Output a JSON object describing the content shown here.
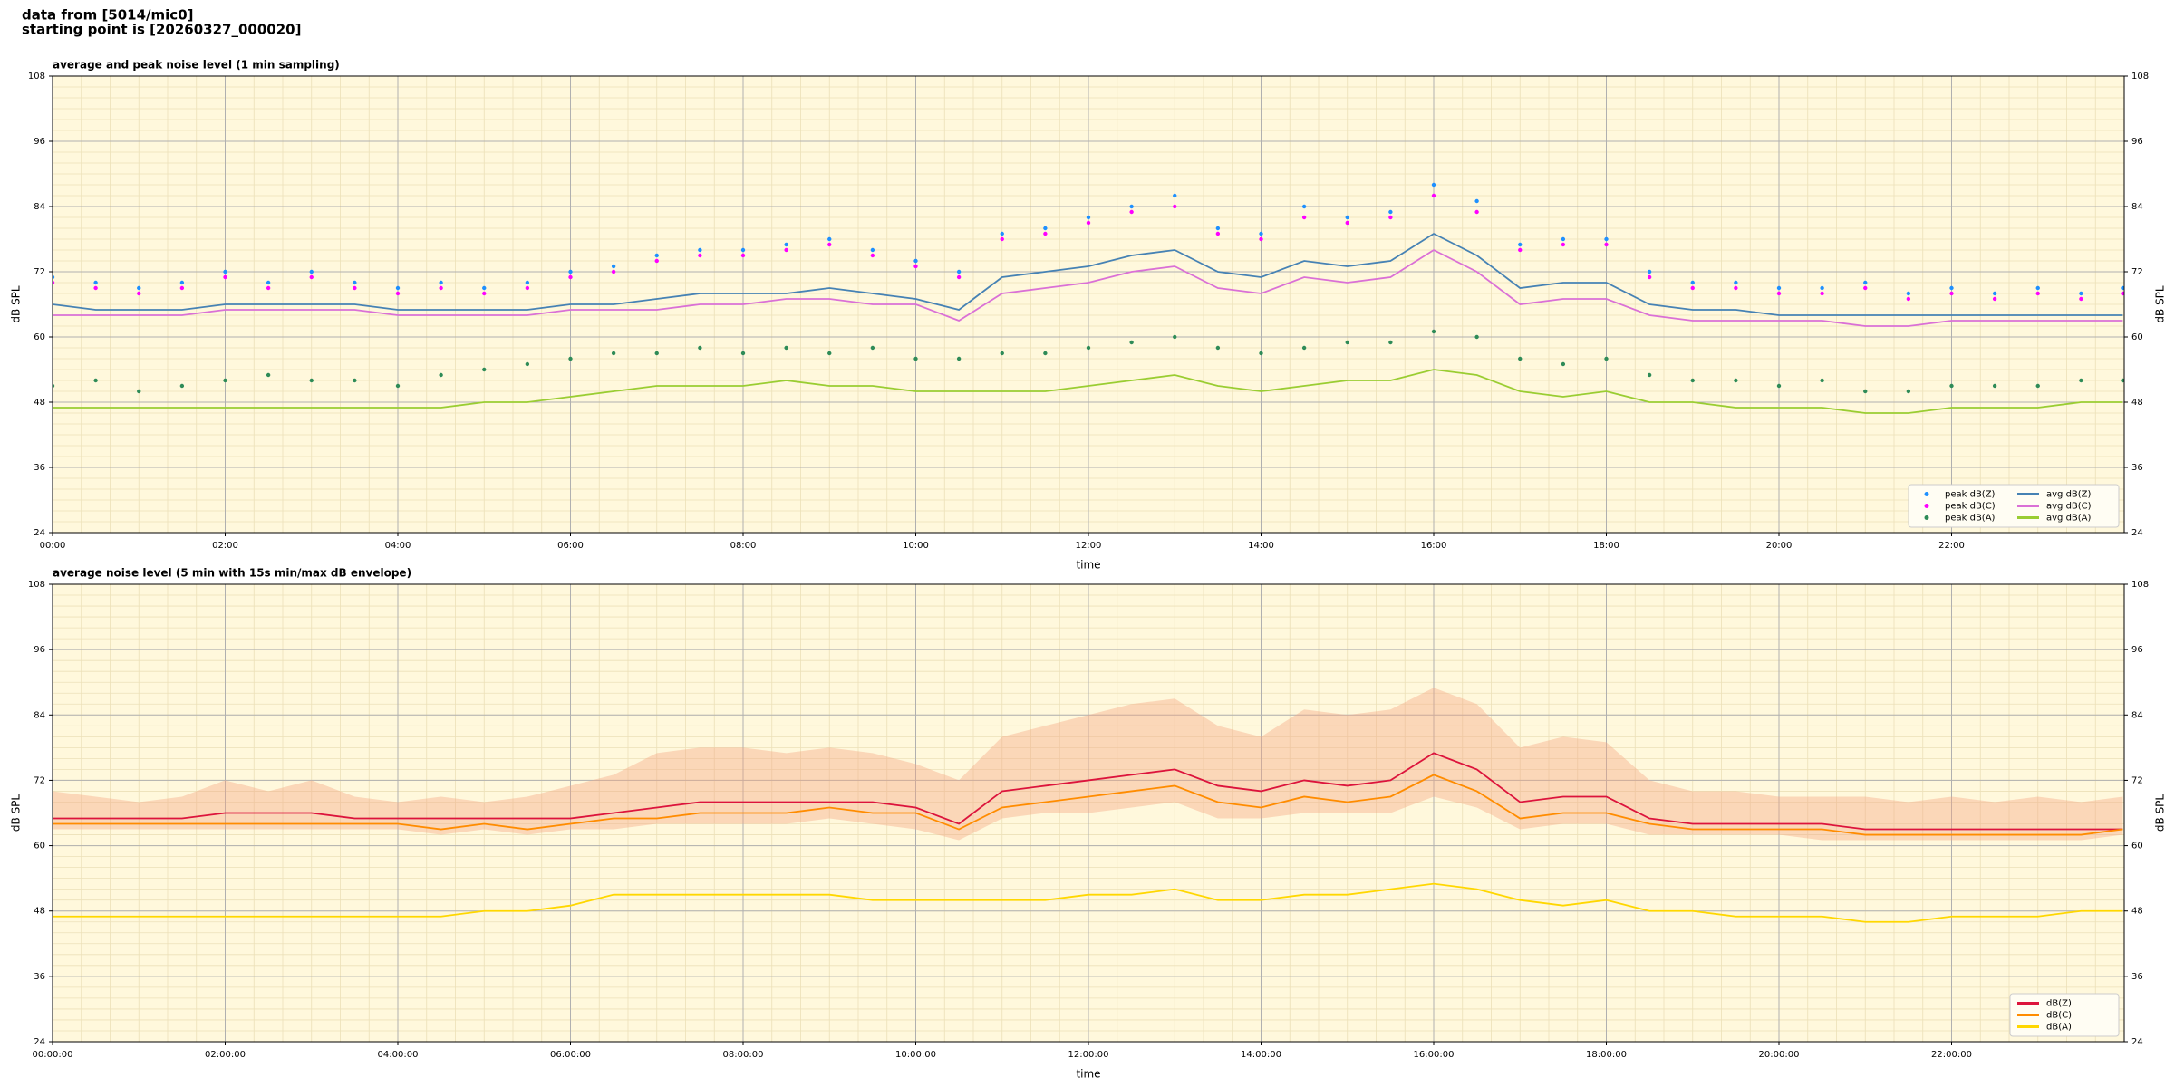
{
  "header": {
    "line1": "data from [5014/mic0]",
    "line2": "starting point is [20260327_000020]"
  },
  "chart_data": [
    {
      "type": "line",
      "title": "average and peak noise level (1 min sampling)",
      "xlabel": "time",
      "ylabel": "dB SPL",
      "background": "#fff8dc",
      "grid": true,
      "minor_grid": true,
      "legend_loc": "lower right",
      "legend_ncol": 2,
      "xlim": [
        0,
        1440
      ],
      "ylim": [
        24,
        108
      ],
      "yticks": [
        24,
        36,
        48,
        60,
        72,
        84,
        96,
        108
      ],
      "xticks": [
        {
          "value": 0,
          "label": "00:00"
        },
        {
          "value": 120,
          "label": "02:00"
        },
        {
          "value": 240,
          "label": "04:00"
        },
        {
          "value": 360,
          "label": "06:00"
        },
        {
          "value": 480,
          "label": "08:00"
        },
        {
          "value": 600,
          "label": "10:00"
        },
        {
          "value": 720,
          "label": "12:00"
        },
        {
          "value": 840,
          "label": "14:00"
        },
        {
          "value": 960,
          "label": "16:00"
        },
        {
          "value": 1080,
          "label": "18:00"
        },
        {
          "value": 1200,
          "label": "20:00"
        },
        {
          "value": 1320,
          "label": "22:00"
        }
      ],
      "x": [
        0,
        30,
        60,
        90,
        120,
        150,
        180,
        210,
        240,
        270,
        300,
        330,
        360,
        390,
        420,
        450,
        480,
        510,
        540,
        570,
        600,
        630,
        660,
        690,
        720,
        750,
        780,
        810,
        840,
        870,
        900,
        930,
        960,
        990,
        1020,
        1050,
        1080,
        1110,
        1140,
        1170,
        1200,
        1230,
        1260,
        1290,
        1320,
        1350,
        1380,
        1410,
        1439
      ],
      "series": [
        {
          "name": "peak dB(Z)",
          "kind": "scatter",
          "color": "#1e90ff",
          "values": [
            71,
            70,
            69,
            70,
            72,
            70,
            72,
            70,
            69,
            70,
            69,
            70,
            72,
            73,
            75,
            76,
            76,
            77,
            78,
            76,
            74,
            72,
            79,
            80,
            82,
            84,
            86,
            80,
            79,
            84,
            82,
            83,
            88,
            85,
            77,
            78,
            78,
            72,
            70,
            70,
            69,
            69,
            70,
            68,
            69,
            68,
            69,
            68,
            69
          ]
        },
        {
          "name": "peak dB(C)",
          "kind": "scatter",
          "color": "#ff00ff",
          "values": [
            70,
            69,
            68,
            69,
            71,
            69,
            71,
            69,
            68,
            69,
            68,
            69,
            71,
            72,
            74,
            75,
            75,
            76,
            77,
            75,
            73,
            71,
            78,
            79,
            81,
            83,
            84,
            79,
            78,
            82,
            81,
            82,
            86,
            83,
            76,
            77,
            77,
            71,
            69,
            69,
            68,
            68,
            69,
            67,
            68,
            67,
            68,
            67,
            68
          ]
        },
        {
          "name": "peak dB(A)",
          "kind": "scatter",
          "color": "#2e8b57",
          "values": [
            51,
            52,
            50,
            51,
            52,
            53,
            52,
            52,
            51,
            53,
            54,
            55,
            56,
            57,
            57,
            58,
            57,
            58,
            57,
            58,
            56,
            56,
            57,
            57,
            58,
            59,
            60,
            58,
            57,
            58,
            59,
            59,
            61,
            60,
            56,
            55,
            56,
            53,
            52,
            52,
            51,
            52,
            50,
            50,
            51,
            51,
            51,
            52,
            52
          ]
        },
        {
          "name": "avg dB(Z)",
          "kind": "line",
          "color": "#4682b4",
          "values": [
            66,
            65,
            65,
            65,
            66,
            66,
            66,
            66,
            65,
            65,
            65,
            65,
            66,
            66,
            67,
            68,
            68,
            68,
            69,
            68,
            67,
            65,
            71,
            72,
            73,
            75,
            76,
            72,
            71,
            74,
            73,
            74,
            79,
            75,
            69,
            70,
            70,
            66,
            65,
            65,
            64,
            64,
            64,
            64,
            64,
            64,
            64,
            64,
            64
          ]
        },
        {
          "name": "avg dB(C)",
          "kind": "line",
          "color": "#da70d6",
          "values": [
            64,
            64,
            64,
            64,
            65,
            65,
            65,
            65,
            64,
            64,
            64,
            64,
            65,
            65,
            65,
            66,
            66,
            67,
            67,
            66,
            66,
            63,
            68,
            69,
            70,
            72,
            73,
            69,
            68,
            71,
            70,
            71,
            76,
            72,
            66,
            67,
            67,
            64,
            63,
            63,
            63,
            63,
            62,
            62,
            63,
            63,
            63,
            63,
            63
          ]
        },
        {
          "name": "avg dB(A)",
          "kind": "line",
          "color": "#9acd32",
          "values": [
            47,
            47,
            47,
            47,
            47,
            47,
            47,
            47,
            47,
            47,
            48,
            48,
            49,
            50,
            51,
            51,
            51,
            52,
            51,
            51,
            50,
            50,
            50,
            50,
            51,
            52,
            53,
            51,
            50,
            51,
            52,
            52,
            54,
            53,
            50,
            49,
            50,
            48,
            48,
            47,
            47,
            47,
            46,
            46,
            47,
            47,
            47,
            48,
            48
          ]
        }
      ]
    },
    {
      "type": "line",
      "title": "average noise level (5 min with 15s min/max dB envelope)",
      "xlabel": "time",
      "ylabel": "dB SPL",
      "background": "#fff8dc",
      "grid": true,
      "minor_grid": true,
      "legend_loc": "lower right",
      "legend_ncol": 1,
      "xlim": [
        0,
        1440
      ],
      "ylim": [
        24,
        108
      ],
      "yticks": [
        24,
        36,
        48,
        60,
        72,
        84,
        96,
        108
      ],
      "xticks": [
        {
          "value": 0,
          "label": "00:00:00"
        },
        {
          "value": 120,
          "label": "02:00:00"
        },
        {
          "value": 240,
          "label": "04:00:00"
        },
        {
          "value": 360,
          "label": "06:00:00"
        },
        {
          "value": 480,
          "label": "08:00:00"
        },
        {
          "value": 600,
          "label": "10:00:00"
        },
        {
          "value": 720,
          "label": "12:00:00"
        },
        {
          "value": 840,
          "label": "14:00:00"
        },
        {
          "value": 960,
          "label": "16:00:00"
        },
        {
          "value": 1080,
          "label": "18:00:00"
        },
        {
          "value": 1200,
          "label": "20:00:00"
        },
        {
          "value": 1320,
          "label": "22:00:00"
        }
      ],
      "x": [
        0,
        30,
        60,
        90,
        120,
        150,
        180,
        210,
        240,
        270,
        300,
        330,
        360,
        390,
        420,
        450,
        480,
        510,
        540,
        570,
        600,
        630,
        660,
        690,
        720,
        750,
        780,
        810,
        840,
        870,
        900,
        930,
        960,
        990,
        1020,
        1050,
        1080,
        1110,
        1140,
        1170,
        1200,
        1230,
        1260,
        1290,
        1320,
        1350,
        1380,
        1410,
        1439
      ],
      "band": {
        "color": "#f4a582",
        "lower": [
          63,
          63,
          63,
          63,
          63,
          63,
          63,
          63,
          63,
          62,
          63,
          62,
          63,
          63,
          64,
          64,
          64,
          64,
          65,
          64,
          63,
          61,
          65,
          66,
          66,
          67,
          68,
          65,
          65,
          66,
          66,
          66,
          69,
          67,
          63,
          64,
          64,
          62,
          62,
          62,
          62,
          61,
          61,
          61,
          61,
          61,
          61,
          61,
          62
        ],
        "upper": [
          70,
          69,
          68,
          69,
          72,
          70,
          72,
          69,
          68,
          69,
          68,
          69,
          71,
          73,
          77,
          78,
          78,
          77,
          78,
          77,
          75,
          72,
          80,
          82,
          84,
          86,
          87,
          82,
          80,
          85,
          84,
          85,
          89,
          86,
          78,
          80,
          79,
          72,
          70,
          70,
          69,
          69,
          69,
          68,
          69,
          68,
          69,
          68,
          69
        ]
      },
      "series": [
        {
          "name": "dB(Z)",
          "kind": "line",
          "color": "#dc143c",
          "values": [
            65,
            65,
            65,
            65,
            66,
            66,
            66,
            65,
            65,
            65,
            65,
            65,
            65,
            66,
            67,
            68,
            68,
            68,
            68,
            68,
            67,
            64,
            70,
            71,
            72,
            73,
            74,
            71,
            70,
            72,
            71,
            72,
            77,
            74,
            68,
            69,
            69,
            65,
            64,
            64,
            64,
            64,
            63,
            63,
            63,
            63,
            63,
            63,
            63
          ]
        },
        {
          "name": "dB(C)",
          "kind": "line",
          "color": "#ff8c00",
          "values": [
            64,
            64,
            64,
            64,
            64,
            64,
            64,
            64,
            64,
            63,
            64,
            63,
            64,
            65,
            65,
            66,
            66,
            66,
            67,
            66,
            66,
            63,
            67,
            68,
            69,
            70,
            71,
            68,
            67,
            69,
            68,
            69,
            73,
            70,
            65,
            66,
            66,
            64,
            63,
            63,
            63,
            63,
            62,
            62,
            62,
            62,
            62,
            62,
            63
          ]
        },
        {
          "name": "dB(A)",
          "kind": "line",
          "color": "#ffd700",
          "values": [
            47,
            47,
            47,
            47,
            47,
            47,
            47,
            47,
            47,
            47,
            48,
            48,
            49,
            51,
            51,
            51,
            51,
            51,
            51,
            50,
            50,
            50,
            50,
            50,
            51,
            51,
            52,
            50,
            50,
            51,
            51,
            52,
            53,
            52,
            50,
            49,
            50,
            48,
            48,
            47,
            47,
            47,
            46,
            46,
            47,
            47,
            47,
            48,
            48
          ]
        }
      ]
    }
  ]
}
